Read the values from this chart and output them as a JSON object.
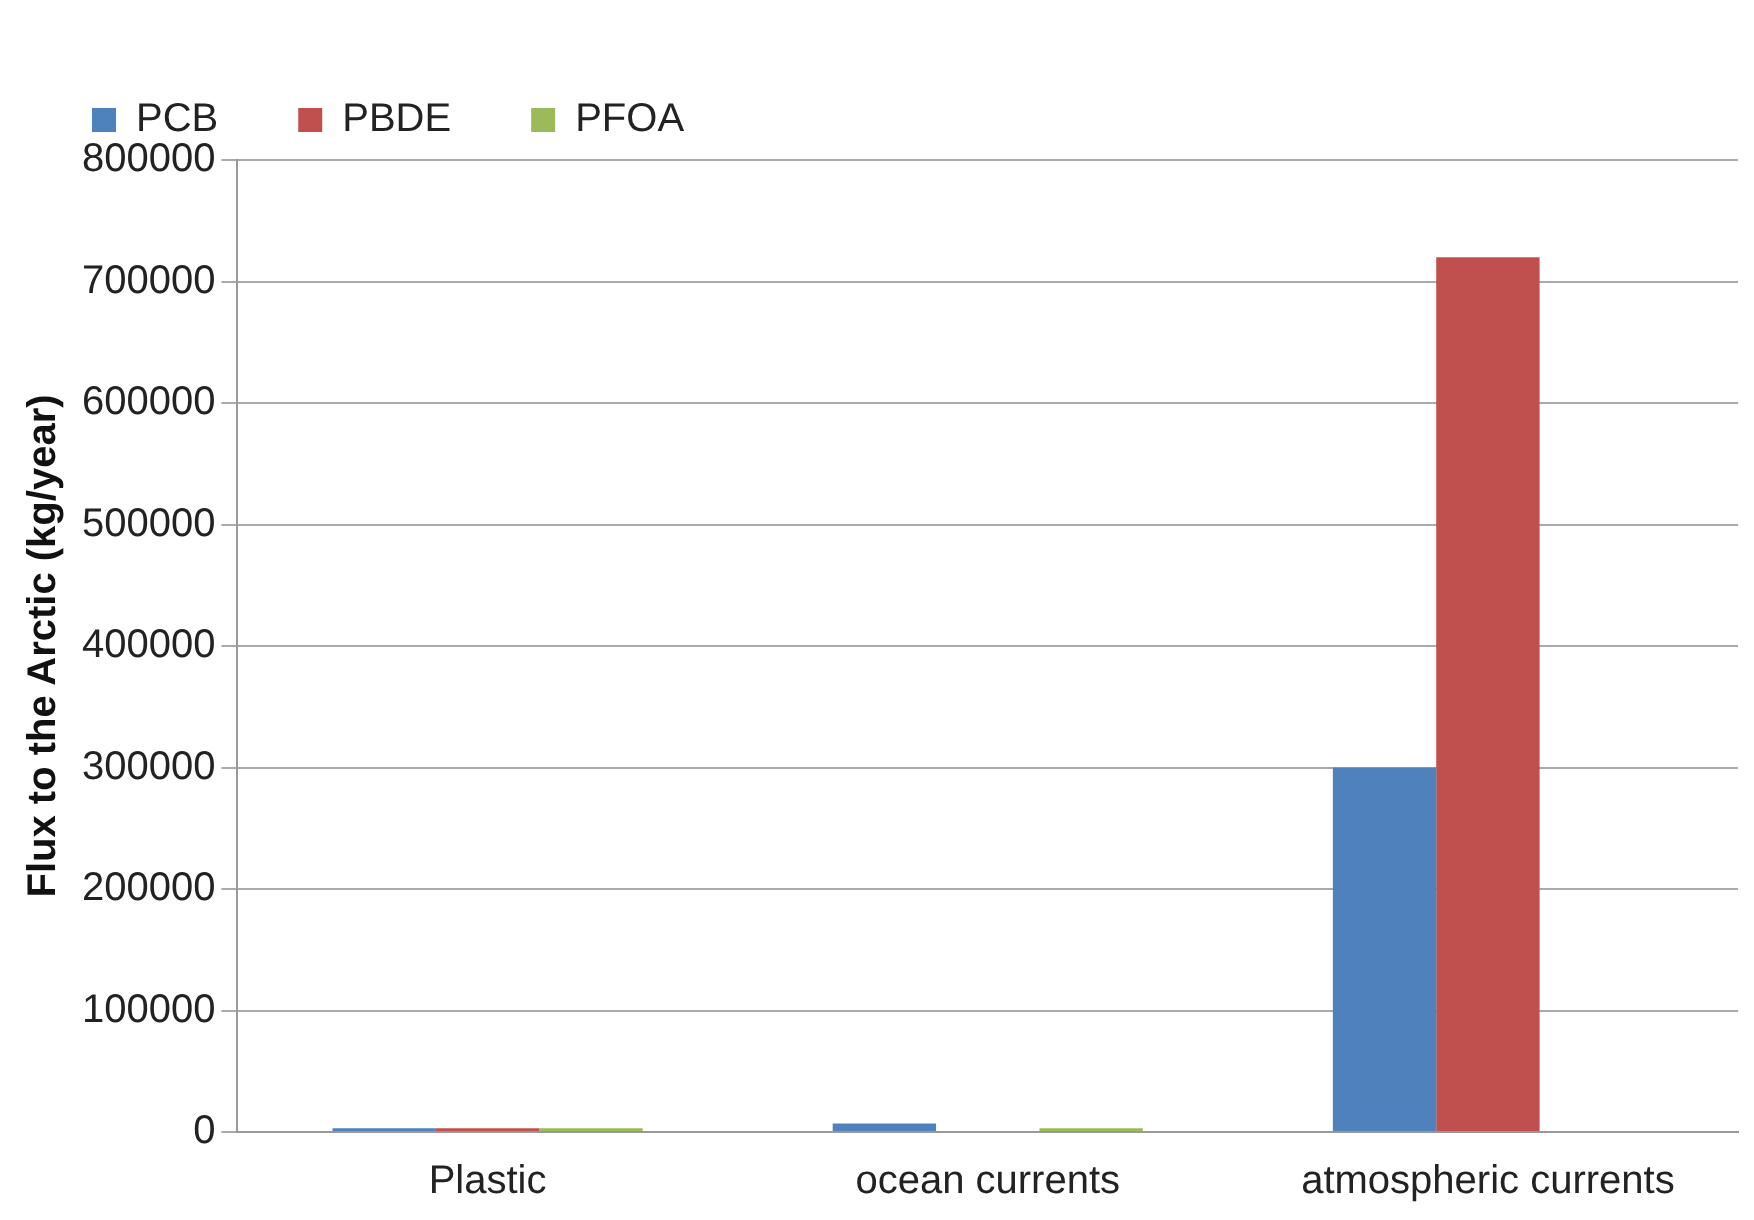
{
  "chart_data": {
    "type": "bar",
    "ylabel": "Flux to the Arctic (kg/year)",
    "categories": [
      "Plastic",
      "ocean currents",
      "atmospheric currents"
    ],
    "series": [
      {
        "name": "PCB",
        "color": "#4f81bd",
        "values": [
          3000,
          7000,
          300000
        ]
      },
      {
        "name": "PBDE",
        "color": "#c0504d",
        "values": [
          3000,
          null,
          720000
        ]
      },
      {
        "name": "PFOA",
        "color": "#9bbb59",
        "values": [
          3000,
          3000,
          null
        ]
      }
    ],
    "ylim": [
      0,
      800000
    ],
    "yticks": [
      0,
      100000,
      200000,
      300000,
      400000,
      500000,
      600000,
      700000,
      800000
    ],
    "grid": "y",
    "legend": "top left"
  }
}
